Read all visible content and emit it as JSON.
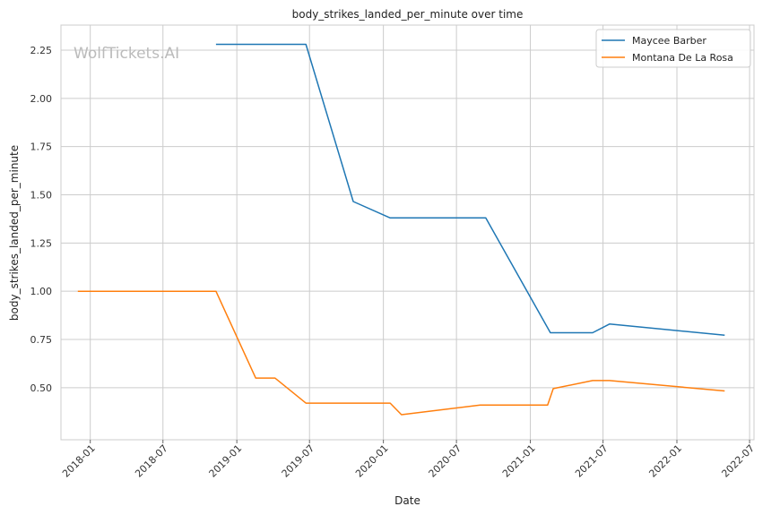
{
  "chart_data": {
    "type": "line",
    "title": "body_strikes_landed_per_minute over time",
    "xlabel": "Date",
    "ylabel": "body_strikes_landed_per_minute",
    "watermark": "WolfTickets.AI",
    "grid": true,
    "legend_position": "top-right",
    "x_tick_labels": [
      "2018-01",
      "2018-07",
      "2019-01",
      "2019-07",
      "2020-01",
      "2020-07",
      "2021-01",
      "2021-07",
      "2022-01",
      "2022-07"
    ],
    "x_tick_dates": [
      "2018-01-01",
      "2018-07-01",
      "2019-01-01",
      "2019-07-01",
      "2020-01-01",
      "2020-07-01",
      "2021-01-01",
      "2021-07-01",
      "2022-01-01",
      "2022-07-01"
    ],
    "xlim": [
      "2017-10-20",
      "2022-07-12"
    ],
    "ylim": [
      0.23,
      2.38
    ],
    "y_ticks": [
      "0.50",
      "0.75",
      "1.00",
      "1.25",
      "1.50",
      "1.75",
      "2.00",
      "2.25"
    ],
    "series": [
      {
        "name": "Maycee Barber",
        "color": "#1f77b4",
        "points": [
          {
            "x": "2018-11-10",
            "y": 2.28
          },
          {
            "x": "2019-06-22",
            "y": 2.28
          },
          {
            "x": "2019-10-18",
            "y": 1.465
          },
          {
            "x": "2020-01-18",
            "y": 1.38
          },
          {
            "x": "2020-09-12",
            "y": 1.38
          },
          {
            "x": "2021-02-20",
            "y": 0.785
          },
          {
            "x": "2021-06-05",
            "y": 0.785
          },
          {
            "x": "2021-07-17",
            "y": 0.83
          },
          {
            "x": "2022-04-30",
            "y": 0.772
          }
        ]
      },
      {
        "name": "Montana De La Rosa",
        "color": "#ff7f0e",
        "points": [
          {
            "x": "2017-12-01",
            "y": 1.0
          },
          {
            "x": "2018-11-10",
            "y": 1.0
          },
          {
            "x": "2019-02-17",
            "y": 0.55
          },
          {
            "x": "2019-04-06",
            "y": 0.55
          },
          {
            "x": "2019-06-22",
            "y": 0.42
          },
          {
            "x": "2020-01-18",
            "y": 0.42
          },
          {
            "x": "2020-02-15",
            "y": 0.36
          },
          {
            "x": "2020-08-29",
            "y": 0.41
          },
          {
            "x": "2021-02-13",
            "y": 0.41
          },
          {
            "x": "2021-02-27",
            "y": 0.495
          },
          {
            "x": "2021-06-05",
            "y": 0.537
          },
          {
            "x": "2021-07-17",
            "y": 0.537
          },
          {
            "x": "2022-04-30",
            "y": 0.483
          }
        ]
      }
    ]
  }
}
